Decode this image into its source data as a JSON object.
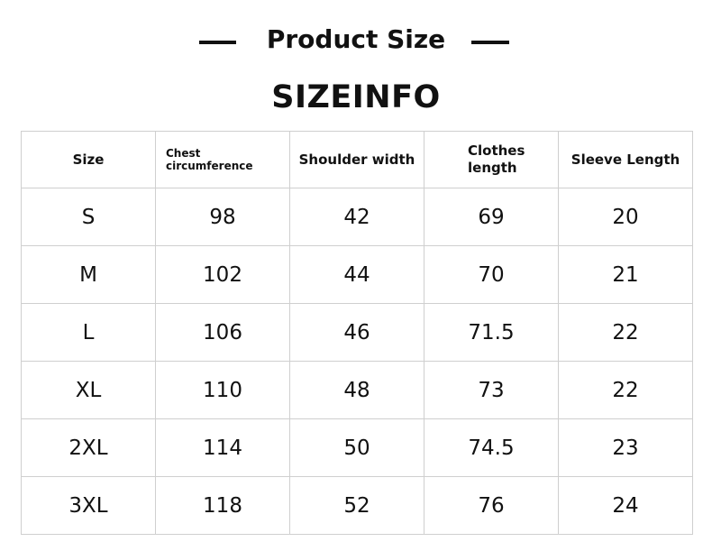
{
  "header": {
    "title": "Product Size",
    "subtitle": "SIZEINFO"
  },
  "table": {
    "columns": [
      "Size",
      "Chest circumference",
      "Shoulder width",
      "Clothes length",
      "Sleeve Length"
    ],
    "rows": [
      [
        "S",
        98,
        42,
        69,
        20
      ],
      [
        "M",
        102,
        44,
        70,
        21
      ],
      [
        "L",
        106,
        46,
        71.5,
        22
      ],
      [
        "XL",
        110,
        48,
        73,
        22
      ],
      [
        "2XL",
        114,
        50,
        74.5,
        23
      ],
      [
        "3XL",
        118,
        52,
        76,
        24
      ]
    ]
  }
}
